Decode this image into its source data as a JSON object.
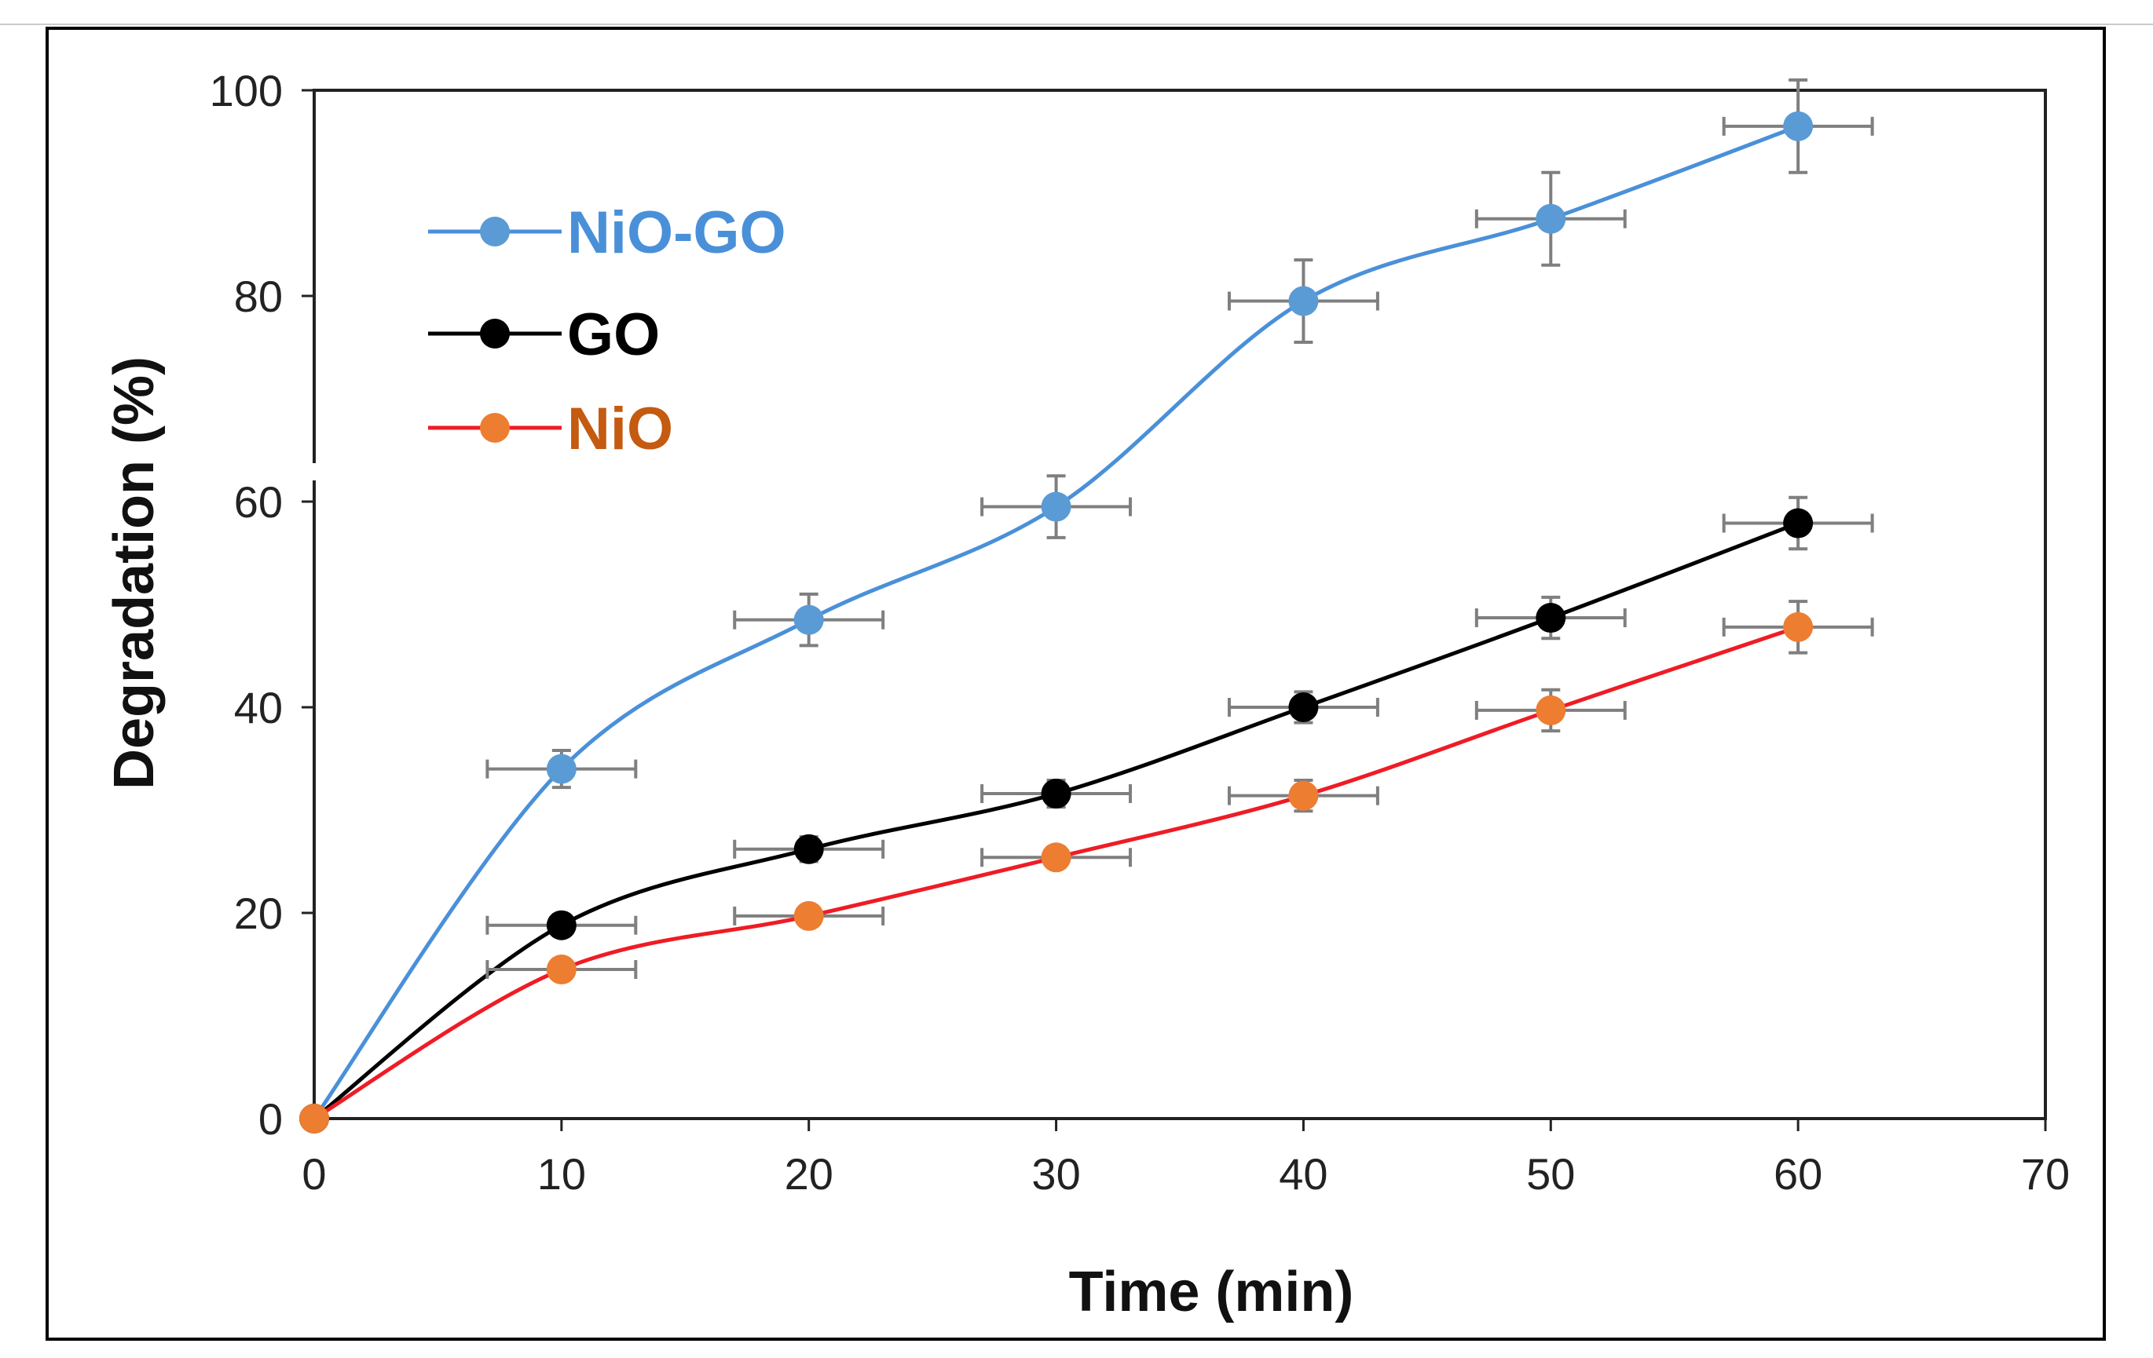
{
  "chart_data": {
    "type": "line",
    "xlabel": "Time (min)",
    "ylabel": "Degradation (%)",
    "xlim": [
      0,
      70
    ],
    "ylim": [
      0,
      100
    ],
    "x_ticks": [
      "0",
      "10",
      "20",
      "30",
      "40",
      "50",
      "60",
      "70"
    ],
    "y_ticks": [
      "0",
      "20",
      "40",
      "60",
      "80",
      "100"
    ],
    "grid": false,
    "legend_position": "top-left",
    "x": [
      0,
      10,
      20,
      30,
      40,
      50,
      60
    ],
    "x_error": 3,
    "series": [
      {
        "name": "NiO-GO",
        "color": "#4a90d9",
        "marker_color": "#5b9bd5",
        "values": [
          0,
          34,
          48.5,
          59.5,
          79.5,
          87.5,
          96.5
        ],
        "y_error": [
          0,
          1.8,
          2.5,
          3,
          4,
          4.5,
          4.5
        ]
      },
      {
        "name": "GO",
        "color": "#000000",
        "marker_color": "#000000",
        "values": [
          0,
          18.8,
          26.2,
          31.6,
          40,
          48.7,
          57.9
        ],
        "y_error": [
          0,
          1,
          1.2,
          1.3,
          1.5,
          2,
          2.5
        ]
      },
      {
        "name": "NiO",
        "color": "#ee1c25",
        "marker_color": "#ed7d31",
        "label_color": "#c55a11",
        "values": [
          0,
          14.5,
          19.7,
          25.4,
          31.4,
          39.7,
          47.8
        ],
        "y_error": [
          0,
          0.8,
          1,
          1,
          1.5,
          2,
          2.5
        ]
      }
    ]
  }
}
